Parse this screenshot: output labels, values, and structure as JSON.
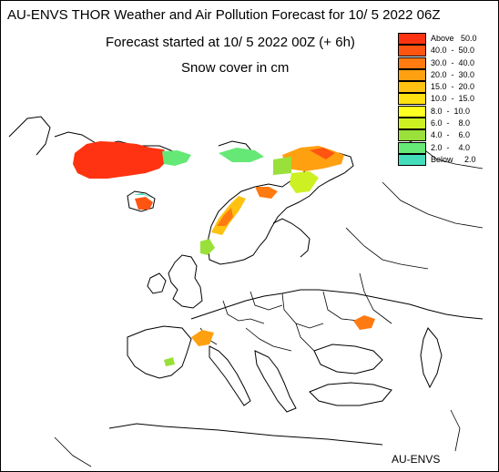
{
  "header": {
    "title": "AU-ENVS THOR Weather and Air Pollution Forecast for 10/ 5 2022  06Z",
    "subtitle": "Forecast started at 10/ 5 2022  00Z (+ 6h)",
    "variable": "Snow cover in cm"
  },
  "footer": {
    "credit": "AU-ENVS"
  },
  "legend": {
    "items": [
      {
        "label": "Above   50.0",
        "color": "#ff3311"
      },
      {
        "label": "40.0  -  50.0",
        "color": "#ff5511"
      },
      {
        "label": "30.0  -  40.0",
        "color": "#ff7a11"
      },
      {
        "label": "20.0  -  30.0",
        "color": "#ffa011"
      },
      {
        "label": "15.0  -  20.0",
        "color": "#ffc211"
      },
      {
        "label": "10.0  -  15.0",
        "color": "#ffe011"
      },
      {
        "label": "8.0  -  10.0",
        "color": "#ffff22"
      },
      {
        "label": "6.0  -    8.0",
        "color": "#ccf022"
      },
      {
        "label": "4.0  -    6.0",
        "color": "#99e03a"
      },
      {
        "label": "2.0  -    4.0",
        "color": "#66e877"
      },
      {
        "label": "Below     2.0",
        "color": "#44ddbb"
      }
    ]
  },
  "map": {
    "base_color": "#ffffff",
    "coast_color": "#000000"
  }
}
